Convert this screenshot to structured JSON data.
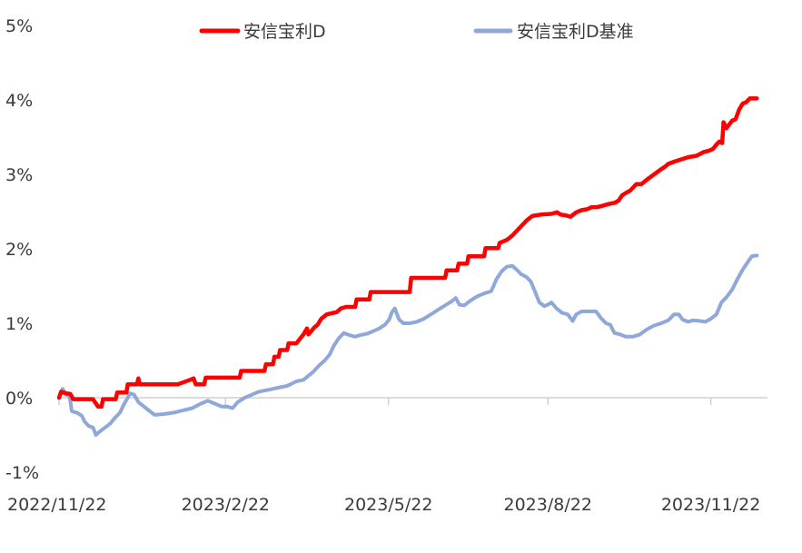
{
  "chart_data": {
    "type": "line",
    "title": "",
    "xlabel": "",
    "ylabel": "",
    "ylim": [
      -1,
      5
    ],
    "yticks": [
      "5%",
      "4%",
      "3%",
      "2%",
      "1%",
      "0%",
      "-1%"
    ],
    "ytick_values": [
      5,
      4,
      3,
      2,
      1,
      0,
      -1
    ],
    "xlim": [
      0,
      1
    ],
    "xticks": [
      "2022/11/22",
      "2023/2/22",
      "2023/5/22",
      "2023/8/22",
      "2023/11/22"
    ],
    "xtick_positions": [
      0.0,
      0.235,
      0.465,
      0.69,
      0.92
    ],
    "legend_position": "top-center",
    "series": [
      {
        "name": "安信宝利D",
        "color": "#ff0000",
        "points": [
          [
            0.0,
            0.0
          ],
          [
            0.003,
            0.08
          ],
          [
            0.01,
            0.06
          ],
          [
            0.016,
            0.05
          ],
          [
            0.02,
            -0.02
          ],
          [
            0.04,
            -0.02
          ],
          [
            0.048,
            -0.02
          ],
          [
            0.055,
            -0.12
          ],
          [
            0.06,
            -0.12
          ],
          [
            0.062,
            -0.02
          ],
          [
            0.08,
            -0.02
          ],
          [
            0.082,
            0.07
          ],
          [
            0.095,
            0.07
          ],
          [
            0.097,
            0.18
          ],
          [
            0.11,
            0.18
          ],
          [
            0.112,
            0.26
          ],
          [
            0.114,
            0.18
          ],
          [
            0.15,
            0.18
          ],
          [
            0.168,
            0.18
          ],
          [
            0.185,
            0.24
          ],
          [
            0.19,
            0.26
          ],
          [
            0.193,
            0.18
          ],
          [
            0.2,
            0.18
          ],
          [
            0.205,
            0.18
          ],
          [
            0.207,
            0.27
          ],
          [
            0.255,
            0.27
          ],
          [
            0.257,
            0.36
          ],
          [
            0.29,
            0.36
          ],
          [
            0.292,
            0.45
          ],
          [
            0.302,
            0.45
          ],
          [
            0.304,
            0.55
          ],
          [
            0.31,
            0.55
          ],
          [
            0.312,
            0.64
          ],
          [
            0.322,
            0.64
          ],
          [
            0.324,
            0.73
          ],
          [
            0.335,
            0.73
          ],
          [
            0.345,
            0.85
          ],
          [
            0.35,
            0.93
          ],
          [
            0.352,
            0.85
          ],
          [
            0.36,
            0.94
          ],
          [
            0.365,
            0.98
          ],
          [
            0.37,
            1.06
          ],
          [
            0.378,
            1.12
          ],
          [
            0.392,
            1.15
          ],
          [
            0.398,
            1.2
          ],
          [
            0.405,
            1.22
          ],
          [
            0.418,
            1.22
          ],
          [
            0.42,
            1.32
          ],
          [
            0.438,
            1.32
          ],
          [
            0.44,
            1.42
          ],
          [
            0.495,
            1.42
          ],
          [
            0.497,
            1.61
          ],
          [
            0.545,
            1.61
          ],
          [
            0.547,
            1.71
          ],
          [
            0.562,
            1.71
          ],
          [
            0.564,
            1.8
          ],
          [
            0.576,
            1.8
          ],
          [
            0.578,
            1.9
          ],
          [
            0.6,
            1.9
          ],
          [
            0.602,
            2.01
          ],
          [
            0.62,
            2.01
          ],
          [
            0.622,
            2.08
          ],
          [
            0.632,
            2.12
          ],
          [
            0.64,
            2.18
          ],
          [
            0.65,
            2.28
          ],
          [
            0.66,
            2.38
          ],
          [
            0.668,
            2.44
          ],
          [
            0.68,
            2.46
          ],
          [
            0.695,
            2.47
          ],
          [
            0.703,
            2.49
          ],
          [
            0.708,
            2.46
          ],
          [
            0.715,
            2.45
          ],
          [
            0.722,
            2.43
          ],
          [
            0.73,
            2.49
          ],
          [
            0.738,
            2.52
          ],
          [
            0.745,
            2.53
          ],
          [
            0.752,
            2.56
          ],
          [
            0.76,
            2.56
          ],
          [
            0.768,
            2.58
          ],
          [
            0.775,
            2.6
          ],
          [
            0.785,
            2.62
          ],
          [
            0.79,
            2.65
          ],
          [
            0.795,
            2.72
          ],
          [
            0.8,
            2.75
          ],
          [
            0.806,
            2.78
          ],
          [
            0.815,
            2.87
          ],
          [
            0.822,
            2.87
          ],
          [
            0.83,
            2.93
          ],
          [
            0.84,
            3.0
          ],
          [
            0.85,
            3.07
          ],
          [
            0.855,
            3.1
          ],
          [
            0.86,
            3.14
          ],
          [
            0.868,
            3.17
          ],
          [
            0.878,
            3.2
          ],
          [
            0.888,
            3.23
          ],
          [
            0.9,
            3.25
          ],
          [
            0.91,
            3.3
          ],
          [
            0.918,
            3.32
          ],
          [
            0.923,
            3.34
          ],
          [
            0.928,
            3.4
          ],
          [
            0.932,
            3.44
          ],
          [
            0.936,
            3.42
          ],
          [
            0.938,
            3.7
          ],
          [
            0.942,
            3.62
          ],
          [
            0.95,
            3.72
          ],
          [
            0.955,
            3.74
          ],
          [
            0.96,
            3.87
          ],
          [
            0.965,
            3.95
          ],
          [
            0.97,
            3.97
          ],
          [
            0.975,
            4.02
          ],
          [
            0.985,
            4.02
          ]
        ]
      },
      {
        "name": "安信宝利D基准",
        "color": "#8fa8d9",
        "points": [
          [
            0.0,
            0.0
          ],
          [
            0.005,
            0.12
          ],
          [
            0.01,
            0.04
          ],
          [
            0.015,
            0.02
          ],
          [
            0.018,
            -0.18
          ],
          [
            0.025,
            -0.2
          ],
          [
            0.032,
            -0.24
          ],
          [
            0.036,
            -0.32
          ],
          [
            0.042,
            -0.38
          ],
          [
            0.048,
            -0.4
          ],
          [
            0.052,
            -0.5
          ],
          [
            0.058,
            -0.45
          ],
          [
            0.065,
            -0.4
          ],
          [
            0.072,
            -0.35
          ],
          [
            0.078,
            -0.28
          ],
          [
            0.086,
            -0.2
          ],
          [
            0.092,
            -0.08
          ],
          [
            0.097,
            0.0
          ],
          [
            0.1,
            0.06
          ],
          [
            0.106,
            0.04
          ],
          [
            0.112,
            -0.06
          ],
          [
            0.12,
            -0.12
          ],
          [
            0.128,
            -0.18
          ],
          [
            0.135,
            -0.23
          ],
          [
            0.148,
            -0.22
          ],
          [
            0.162,
            -0.2
          ],
          [
            0.175,
            -0.17
          ],
          [
            0.188,
            -0.14
          ],
          [
            0.2,
            -0.08
          ],
          [
            0.21,
            -0.04
          ],
          [
            0.22,
            -0.08
          ],
          [
            0.23,
            -0.12
          ],
          [
            0.238,
            -0.12
          ],
          [
            0.245,
            -0.14
          ],
          [
            0.252,
            -0.06
          ],
          [
            0.262,
            0.0
          ],
          [
            0.272,
            0.04
          ],
          [
            0.282,
            0.08
          ],
          [
            0.292,
            0.1
          ],
          [
            0.302,
            0.12
          ],
          [
            0.312,
            0.14
          ],
          [
            0.322,
            0.16
          ],
          [
            0.335,
            0.22
          ],
          [
            0.345,
            0.24
          ],
          [
            0.358,
            0.34
          ],
          [
            0.368,
            0.44
          ],
          [
            0.375,
            0.5
          ],
          [
            0.382,
            0.58
          ],
          [
            0.388,
            0.7
          ],
          [
            0.395,
            0.8
          ],
          [
            0.402,
            0.87
          ],
          [
            0.41,
            0.84
          ],
          [
            0.418,
            0.82
          ],
          [
            0.425,
            0.84
          ],
          [
            0.435,
            0.86
          ],
          [
            0.445,
            0.9
          ],
          [
            0.452,
            0.93
          ],
          [
            0.46,
            0.98
          ],
          [
            0.466,
            1.05
          ],
          [
            0.47,
            1.15
          ],
          [
            0.474,
            1.2
          ],
          [
            0.48,
            1.05
          ],
          [
            0.486,
            1.0
          ],
          [
            0.495,
            1.0
          ],
          [
            0.505,
            1.02
          ],
          [
            0.515,
            1.06
          ],
          [
            0.525,
            1.12
          ],
          [
            0.535,
            1.18
          ],
          [
            0.545,
            1.24
          ],
          [
            0.555,
            1.3
          ],
          [
            0.56,
            1.34
          ],
          [
            0.565,
            1.25
          ],
          [
            0.572,
            1.24
          ],
          [
            0.58,
            1.3
          ],
          [
            0.59,
            1.36
          ],
          [
            0.6,
            1.4
          ],
          [
            0.61,
            1.43
          ],
          [
            0.618,
            1.6
          ],
          [
            0.625,
            1.7
          ],
          [
            0.632,
            1.76
          ],
          [
            0.64,
            1.77
          ],
          [
            0.646,
            1.72
          ],
          [
            0.652,
            1.66
          ],
          [
            0.66,
            1.62
          ],
          [
            0.666,
            1.56
          ],
          [
            0.672,
            1.42
          ],
          [
            0.678,
            1.28
          ],
          [
            0.685,
            1.23
          ],
          [
            0.69,
            1.25
          ],
          [
            0.695,
            1.28
          ],
          [
            0.702,
            1.2
          ],
          [
            0.71,
            1.14
          ],
          [
            0.718,
            1.12
          ],
          [
            0.725,
            1.03
          ],
          [
            0.73,
            1.12
          ],
          [
            0.738,
            1.16
          ],
          [
            0.748,
            1.16
          ],
          [
            0.758,
            1.16
          ],
          [
            0.765,
            1.07
          ],
          [
            0.772,
            1.0
          ],
          [
            0.778,
            0.98
          ],
          [
            0.784,
            0.87
          ],
          [
            0.792,
            0.85
          ],
          [
            0.8,
            0.82
          ],
          [
            0.81,
            0.82
          ],
          [
            0.82,
            0.85
          ],
          [
            0.83,
            0.92
          ],
          [
            0.84,
            0.97
          ],
          [
            0.85,
            1.0
          ],
          [
            0.86,
            1.04
          ],
          [
            0.868,
            1.12
          ],
          [
            0.875,
            1.12
          ],
          [
            0.88,
            1.05
          ],
          [
            0.888,
            1.02
          ],
          [
            0.895,
            1.04
          ],
          [
            0.905,
            1.03
          ],
          [
            0.912,
            1.02
          ],
          [
            0.92,
            1.06
          ],
          [
            0.928,
            1.12
          ],
          [
            0.935,
            1.28
          ],
          [
            0.942,
            1.35
          ],
          [
            0.95,
            1.45
          ],
          [
            0.958,
            1.6
          ],
          [
            0.965,
            1.72
          ],
          [
            0.972,
            1.82
          ],
          [
            0.978,
            1.9
          ],
          [
            0.985,
            1.91
          ]
        ]
      }
    ]
  }
}
